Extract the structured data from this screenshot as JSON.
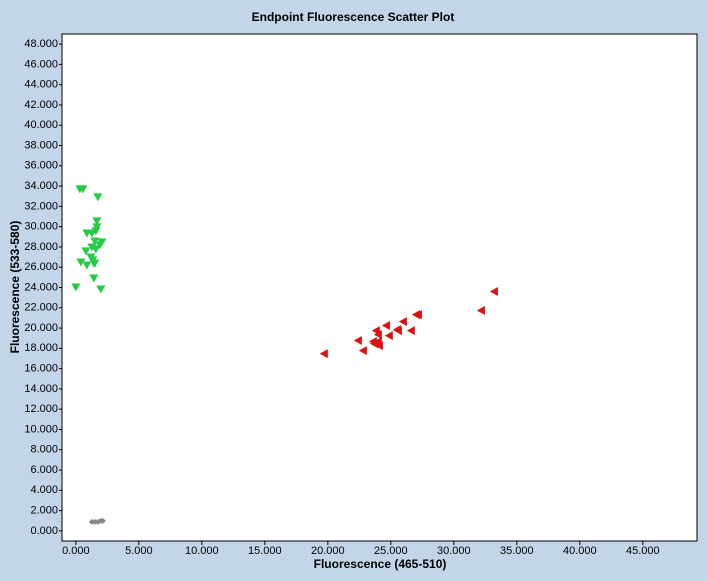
{
  "chart_data": {
    "type": "scatter",
    "title": "Endpoint Fluorescence Scatter Plot",
    "x_label": "Fluorescence (465-510)",
    "y_label": "Fluorescence (533-580)",
    "xlim": [
      -1100,
      49300
    ],
    "ylim": [
      -1000,
      49000
    ],
    "xticks": [
      {
        "value": 0,
        "label": "0.000"
      },
      {
        "value": 5000,
        "label": "5.000"
      },
      {
        "value": 10000,
        "label": "10.000"
      },
      {
        "value": 15000,
        "label": "15.000"
      },
      {
        "value": 20000,
        "label": "20.000"
      },
      {
        "value": 25000,
        "label": "25.000"
      },
      {
        "value": 30000,
        "label": "30.000"
      },
      {
        "value": 35000,
        "label": "35.000"
      },
      {
        "value": 40000,
        "label": "40.000"
      },
      {
        "value": 45000,
        "label": "45.000"
      }
    ],
    "yticks": [
      {
        "value": 0,
        "label": "0.000"
      },
      {
        "value": 2000,
        "label": "2.000"
      },
      {
        "value": 4000,
        "label": "4.000"
      },
      {
        "value": 6000,
        "label": "6.000"
      },
      {
        "value": 8000,
        "label": "8.000"
      },
      {
        "value": 10000,
        "label": "10.000"
      },
      {
        "value": 12000,
        "label": "12.000"
      },
      {
        "value": 14000,
        "label": "14.000"
      },
      {
        "value": 16000,
        "label": "16.000"
      },
      {
        "value": 18000,
        "label": "18.000"
      },
      {
        "value": 20000,
        "label": "20.000"
      },
      {
        "value": 22000,
        "label": "22.000"
      },
      {
        "value": 24000,
        "label": "24.000"
      },
      {
        "value": 26000,
        "label": "26.000"
      },
      {
        "value": 28000,
        "label": "28.000"
      },
      {
        "value": 30000,
        "label": "30.000"
      },
      {
        "value": 32000,
        "label": "32.000"
      },
      {
        "value": 34000,
        "label": "34.000"
      },
      {
        "value": 36000,
        "label": "36.000"
      },
      {
        "value": 38000,
        "label": "38.000"
      },
      {
        "value": 40000,
        "label": "40.000"
      },
      {
        "value": 42000,
        "label": "42.000"
      },
      {
        "value": 44000,
        "label": "44.000"
      },
      {
        "value": 46000,
        "label": "46.000"
      },
      {
        "value": 48000,
        "label": "48.000"
      }
    ],
    "grid": false,
    "series": [
      {
        "color": "#22cc44",
        "marker": "triangle-down",
        "x": [
          317,
          556,
          1746,
          1667,
          1667,
          1587,
          1270,
          873,
          1508,
          2064,
          1905,
          1270,
          794,
          1587,
          1190,
          1349,
          397,
          1429,
          873,
          1508,
          1429,
          0,
          1984
        ],
        "values": [
          33680,
          33680,
          32890,
          30520,
          29930,
          29530,
          29330,
          29330,
          28540,
          28450,
          28150,
          27950,
          27560,
          27750,
          26960,
          26670,
          26470,
          26370,
          26170,
          26370,
          24890,
          24000,
          23800
        ]
      },
      {
        "color": "#dd1111",
        "marker": "triangle-left",
        "x": [
          19680,
          22380,
          22780,
          23570,
          23810,
          23970,
          23650,
          23970,
          24050,
          24610,
          24840,
          25560,
          25480,
          25960,
          26590,
          26990,
          27150,
          32150,
          33180
        ],
        "values": [
          17480,
          18770,
          17780,
          18670,
          19750,
          19360,
          18470,
          18670,
          18270,
          20250,
          19260,
          19750,
          19850,
          20640,
          19750,
          21330,
          21330,
          21730,
          23610
        ]
      },
      {
        "color": "#888888",
        "marker": "diamond",
        "x": [
          1270,
          1508,
          1746,
          1984,
          2143
        ],
        "values": [
          890,
          890,
          890,
          990,
          990
        ]
      }
    ]
  }
}
